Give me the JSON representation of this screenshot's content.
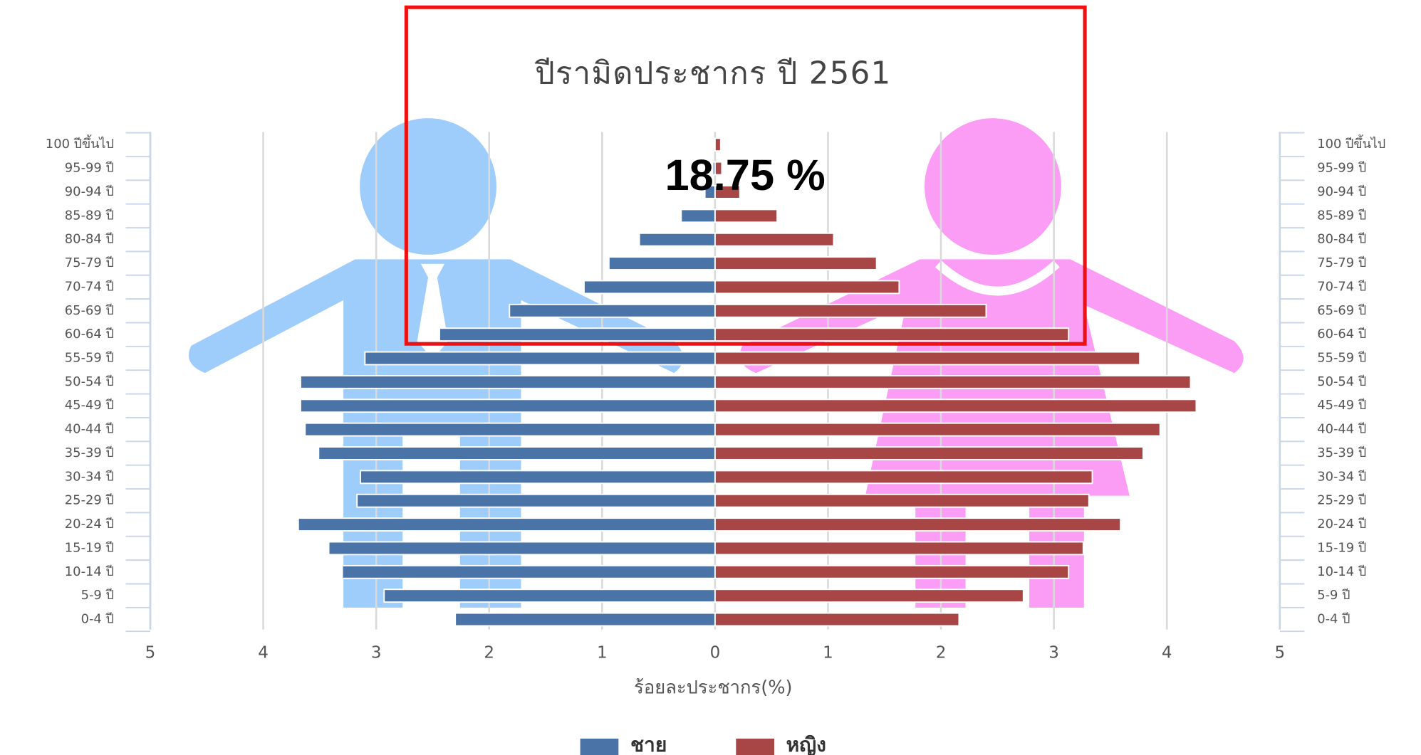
{
  "chart_data": {
    "type": "pyramid",
    "title": "ปีรามิดประชากร ปี 2561",
    "annotation": "18.75 %",
    "xlabel": "ร้อยละประชากร(%)",
    "categories": [
      "0-4 ปี",
      "5-9 ปี",
      "10-14 ปี",
      "15-19 ปี",
      "20-24 ปี",
      "25-29 ปี",
      "30-34 ปี",
      "35-39 ปี",
      "40-44 ปี",
      "45-49 ปี",
      "50-54 ปี",
      "55-59 ปี",
      "60-64 ปี",
      "65-69 ปี",
      "70-74 ปี",
      "75-79 ปี",
      "80-84 ปี",
      "85-89 ปี",
      "90-94 ปี",
      "95-99 ปี",
      "100 ปีขึ้นไป"
    ],
    "series": [
      {
        "name": "ชาย",
        "color": "#4a73a8",
        "side": "left",
        "values": [
          2.3,
          2.93,
          3.3,
          3.42,
          3.69,
          3.17,
          3.14,
          3.51,
          3.63,
          3.67,
          3.67,
          3.1,
          2.44,
          1.82,
          1.16,
          0.94,
          0.67,
          0.3,
          0.09,
          0.02,
          0.01
        ]
      },
      {
        "name": "หญิง",
        "color": "#a84545",
        "side": "right",
        "values": [
          2.16,
          2.73,
          3.13,
          3.26,
          3.59,
          3.31,
          3.34,
          3.79,
          3.94,
          4.26,
          4.21,
          3.76,
          3.13,
          2.4,
          1.63,
          1.43,
          1.05,
          0.55,
          0.22,
          0.06,
          0.05
        ]
      }
    ],
    "xlim": [
      -5,
      5
    ],
    "xticks": [
      {
        "value": -5,
        "label": "5"
      },
      {
        "value": -4,
        "label": "4"
      },
      {
        "value": -3,
        "label": "3"
      },
      {
        "value": -2,
        "label": "2"
      },
      {
        "value": -1,
        "label": "1"
      },
      0,
      1,
      2,
      3,
      4,
      5
    ],
    "grid": true
  }
}
